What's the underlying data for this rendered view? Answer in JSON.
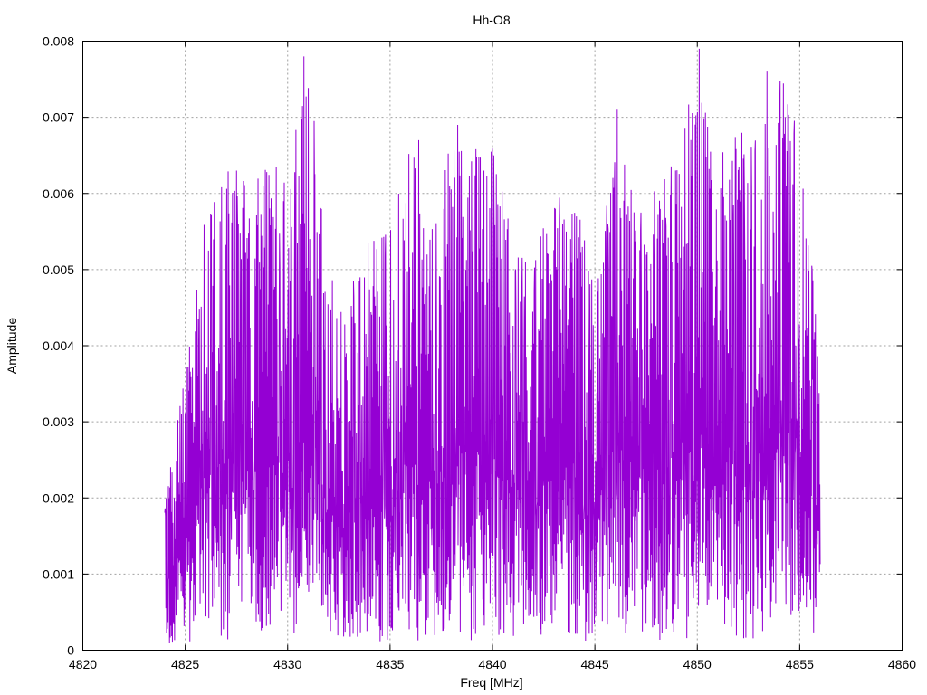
{
  "chart_data": {
    "type": "line",
    "title": "Hh-O8",
    "xlabel": "Freq [MHz]",
    "ylabel": "Amplitude",
    "xlim": [
      4820,
      4860
    ],
    "ylim": [
      0,
      0.008
    ],
    "xticks": [
      "4820",
      "4825",
      "4830",
      "4835",
      "4840",
      "4845",
      "4850",
      "4855",
      "4860"
    ],
    "yticks": [
      "0",
      "0.001",
      "0.002",
      "0.003",
      "0.004",
      "0.005",
      "0.006",
      "0.007",
      "0.008"
    ],
    "grid": true,
    "legend": "none",
    "series": [
      {
        "color": "#9400d3",
        "x_start": 4824.0,
        "x_end": 4856.0,
        "envelope_x": [
          4824,
          4825,
          4826,
          4827,
          4828,
          4829,
          4830,
          4831,
          4832,
          4833,
          4834,
          4835,
          4836,
          4837,
          4838,
          4839,
          4840,
          4841,
          4842,
          4843,
          4844,
          4845,
          4846,
          4847,
          4848,
          4849,
          4850,
          4851,
          4852,
          4853,
          4854,
          4855,
          4856
        ],
        "envelope_y": [
          0.0021,
          0.0037,
          0.0058,
          0.0063,
          0.0063,
          0.0064,
          0.0064,
          0.0078,
          0.005,
          0.0047,
          0.0055,
          0.0055,
          0.0067,
          0.0055,
          0.0069,
          0.0066,
          0.0066,
          0.0054,
          0.0051,
          0.0061,
          0.0062,
          0.005,
          0.0071,
          0.006,
          0.0062,
          0.0065,
          0.0079,
          0.0065,
          0.0069,
          0.0067,
          0.0076,
          0.007,
          0.0038
        ],
        "peaks": [
          {
            "x": 4827.5,
            "y": 0.0063
          },
          {
            "x": 4828.8,
            "y": 0.0061
          },
          {
            "x": 4830.8,
            "y": 0.0078
          },
          {
            "x": 4836.4,
            "y": 0.0067
          },
          {
            "x": 4838.3,
            "y": 0.0069
          },
          {
            "x": 4840.0,
            "y": 0.0066
          },
          {
            "x": 4846.1,
            "y": 0.0071
          },
          {
            "x": 4850.1,
            "y": 0.0079
          },
          {
            "x": 4853.4,
            "y": 0.0076
          },
          {
            "x": 4854.3,
            "y": 0.007
          }
        ]
      }
    ]
  }
}
